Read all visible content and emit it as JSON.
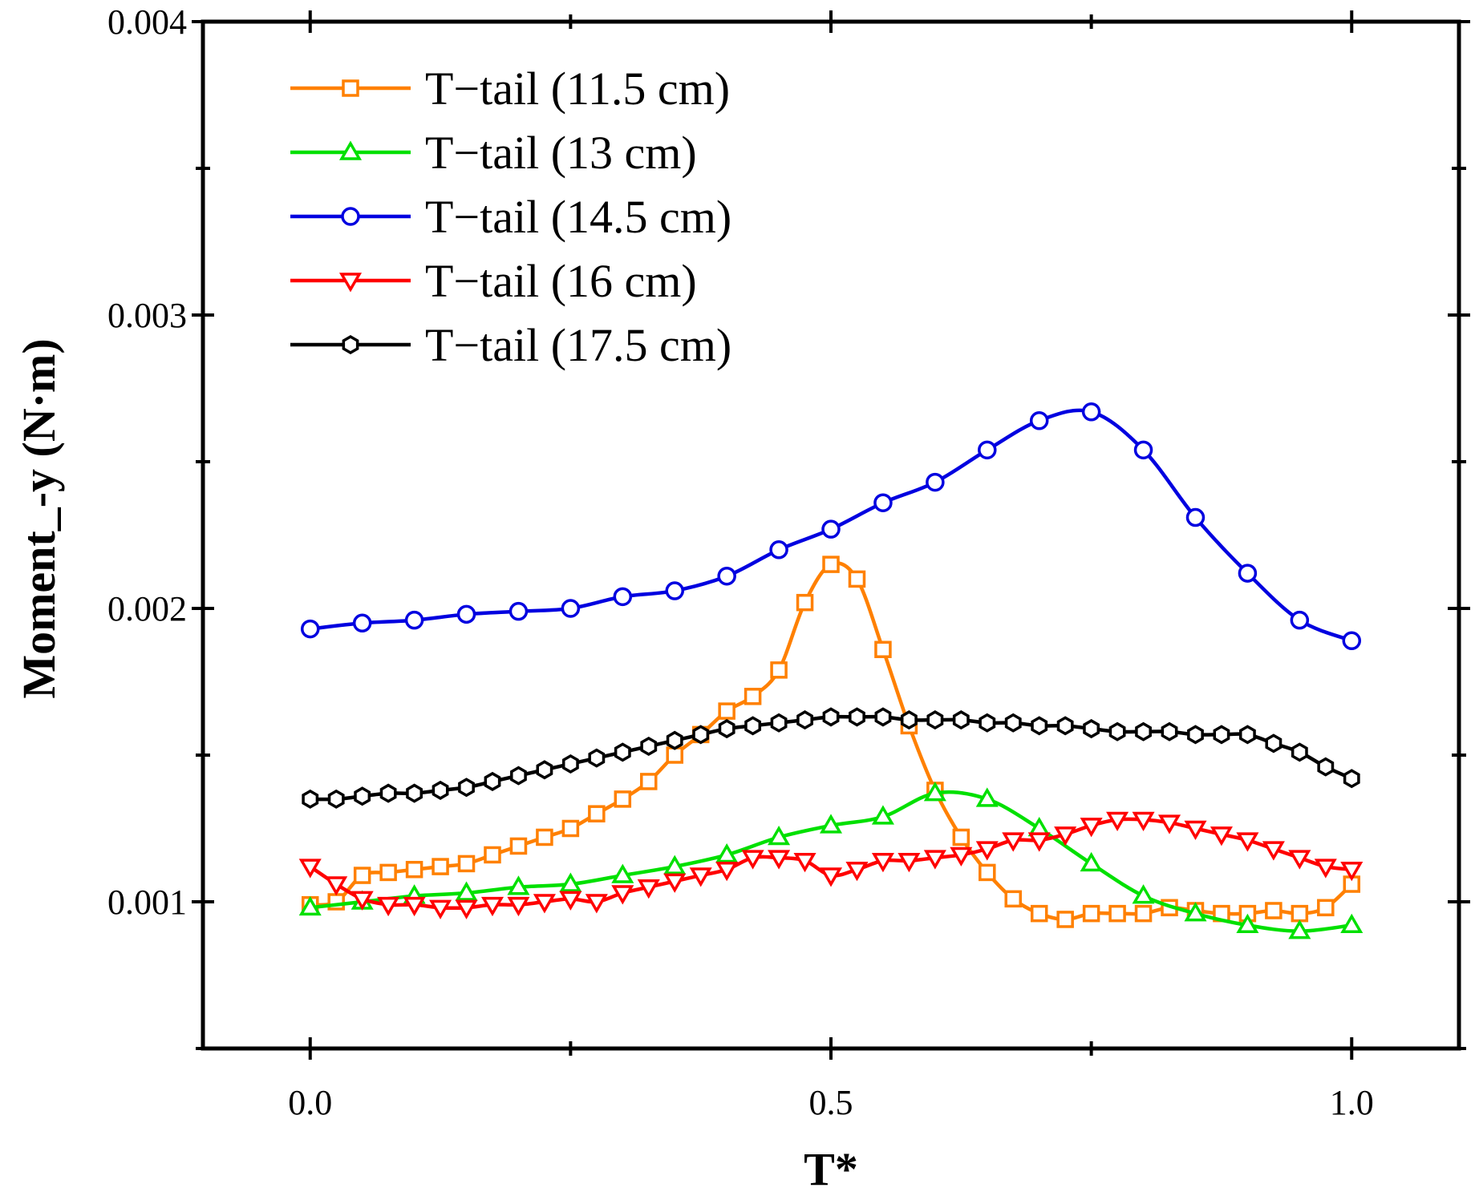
{
  "chart_data": {
    "type": "line",
    "title": "",
    "xlabel": "T*",
    "ylabel": "Moment_-y (N·m)",
    "xlim": [
      -0.103,
      1.103
    ],
    "ylim": [
      0.0005,
      0.004
    ],
    "xticks": [
      0.0,
      0.5,
      1.0
    ],
    "xtick_labels": [
      "0.0",
      "0.5",
      "1.0"
    ],
    "yticks": [
      0.001,
      0.002,
      0.003,
      0.004
    ],
    "ytick_labels": [
      "0.001",
      "0.002",
      "0.003",
      "0.004"
    ],
    "legend_position": "top-left",
    "grid": false,
    "series": [
      {
        "name": "T−tail (11.5 cm)",
        "color": "#FF8000",
        "marker": "square",
        "x": [
          0.0,
          0.025,
          0.05,
          0.075,
          0.1,
          0.125,
          0.15,
          0.175,
          0.2,
          0.225,
          0.25,
          0.275,
          0.3,
          0.325,
          0.35,
          0.375,
          0.4,
          0.425,
          0.45,
          0.475,
          0.5,
          0.525,
          0.55,
          0.575,
          0.6,
          0.625,
          0.65,
          0.675,
          0.7,
          0.725,
          0.75,
          0.775,
          0.8,
          0.825,
          0.85,
          0.875,
          0.9,
          0.925,
          0.95,
          0.975,
          1.0
        ],
        "y": [
          0.00099,
          0.001,
          0.00109,
          0.0011,
          0.00111,
          0.00112,
          0.00113,
          0.00116,
          0.00119,
          0.00122,
          0.00125,
          0.0013,
          0.00135,
          0.00141,
          0.0015,
          0.00157,
          0.00165,
          0.0017,
          0.00179,
          0.00202,
          0.00215,
          0.0021,
          0.00186,
          0.0016,
          0.00138,
          0.00122,
          0.0011,
          0.00101,
          0.00096,
          0.00094,
          0.00096,
          0.00096,
          0.00096,
          0.00098,
          0.00097,
          0.00096,
          0.00096,
          0.00097,
          0.00096,
          0.00098,
          0.00106
        ]
      },
      {
        "name": "T−tail (13 cm)",
        "color": "#00E000",
        "marker": "triangle-up",
        "x": [
          0.0,
          0.05,
          0.1,
          0.15,
          0.2,
          0.25,
          0.3,
          0.35,
          0.4,
          0.45,
          0.5,
          0.55,
          0.6,
          0.65,
          0.7,
          0.75,
          0.8,
          0.85,
          0.9,
          0.95,
          1.0
        ],
        "y": [
          0.00098,
          0.001,
          0.00102,
          0.00103,
          0.00105,
          0.00106,
          0.00109,
          0.00112,
          0.00116,
          0.00122,
          0.00126,
          0.00129,
          0.00137,
          0.00135,
          0.00125,
          0.00113,
          0.00102,
          0.00096,
          0.00092,
          0.0009,
          0.00092
        ]
      },
      {
        "name": "T−tail (14.5 cm)",
        "color": "#0000E0",
        "marker": "circle",
        "x": [
          0.0,
          0.05,
          0.1,
          0.15,
          0.2,
          0.25,
          0.3,
          0.35,
          0.4,
          0.45,
          0.5,
          0.55,
          0.6,
          0.65,
          0.7,
          0.75,
          0.8,
          0.85,
          0.9,
          0.95,
          1.0
        ],
        "y": [
          0.00193,
          0.00195,
          0.00196,
          0.00198,
          0.00199,
          0.002,
          0.00204,
          0.00206,
          0.00211,
          0.0022,
          0.00227,
          0.00236,
          0.00243,
          0.00254,
          0.00264,
          0.00267,
          0.00254,
          0.00231,
          0.00212,
          0.00196,
          0.00189
        ]
      },
      {
        "name": "T−tail (16 cm)",
        "color": "#FF0000",
        "marker": "triangle-down",
        "x": [
          0.0,
          0.025,
          0.05,
          0.075,
          0.1,
          0.125,
          0.15,
          0.175,
          0.2,
          0.225,
          0.25,
          0.275,
          0.3,
          0.325,
          0.35,
          0.375,
          0.4,
          0.425,
          0.45,
          0.475,
          0.5,
          0.525,
          0.55,
          0.575,
          0.6,
          0.625,
          0.65,
          0.675,
          0.7,
          0.725,
          0.75,
          0.775,
          0.8,
          0.825,
          0.85,
          0.875,
          0.9,
          0.925,
          0.95,
          0.975,
          1.0
        ],
        "y": [
          0.00112,
          0.00106,
          0.00101,
          0.00099,
          0.00099,
          0.00098,
          0.00098,
          0.00099,
          0.00099,
          0.001,
          0.00101,
          0.001,
          0.00103,
          0.00105,
          0.00107,
          0.00109,
          0.00111,
          0.00115,
          0.00115,
          0.00114,
          0.00109,
          0.00111,
          0.00114,
          0.00114,
          0.00115,
          0.00116,
          0.00118,
          0.00121,
          0.00121,
          0.00123,
          0.00126,
          0.00128,
          0.00128,
          0.00127,
          0.00125,
          0.00123,
          0.00121,
          0.00118,
          0.00115,
          0.00112,
          0.00111
        ]
      },
      {
        "name": "T−tail (17.5 cm)",
        "color": "#000000",
        "marker": "hexagon",
        "x": [
          0.0,
          0.025,
          0.05,
          0.075,
          0.1,
          0.125,
          0.15,
          0.175,
          0.2,
          0.225,
          0.25,
          0.275,
          0.3,
          0.325,
          0.35,
          0.375,
          0.4,
          0.425,
          0.45,
          0.475,
          0.5,
          0.525,
          0.55,
          0.575,
          0.6,
          0.625,
          0.65,
          0.675,
          0.7,
          0.725,
          0.75,
          0.775,
          0.8,
          0.825,
          0.85,
          0.875,
          0.9,
          0.925,
          0.95,
          0.975,
          1.0
        ],
        "y": [
          0.00135,
          0.00135,
          0.00136,
          0.00137,
          0.00137,
          0.00138,
          0.00139,
          0.00141,
          0.00143,
          0.00145,
          0.00147,
          0.00149,
          0.00151,
          0.00153,
          0.00155,
          0.00157,
          0.00159,
          0.0016,
          0.00161,
          0.00162,
          0.00163,
          0.00163,
          0.00163,
          0.00162,
          0.00162,
          0.00162,
          0.00161,
          0.00161,
          0.0016,
          0.0016,
          0.00159,
          0.00158,
          0.00158,
          0.00158,
          0.00157,
          0.00157,
          0.00157,
          0.00154,
          0.00151,
          0.00146,
          0.00142
        ]
      }
    ]
  }
}
